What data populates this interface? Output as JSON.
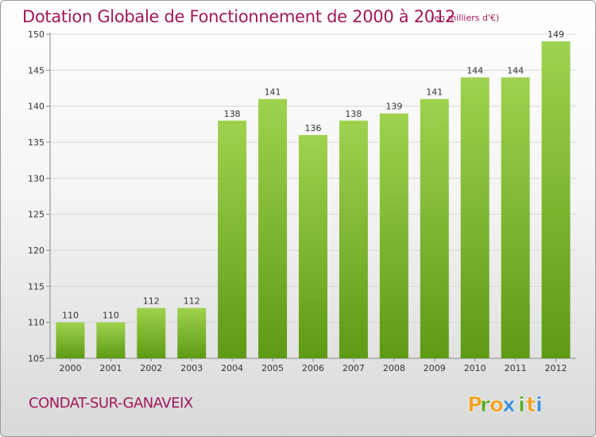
{
  "chart_data": {
    "type": "bar",
    "title": "Dotation Globale de Fonctionnement de 2000 à 2012",
    "subtitle": "(en milliers d'€)",
    "categories": [
      "2000",
      "2001",
      "2002",
      "2003",
      "2004",
      "2005",
      "2006",
      "2007",
      "2008",
      "2009",
      "2010",
      "2011",
      "2012"
    ],
    "values": [
      110,
      110,
      112,
      112,
      138,
      141,
      136,
      138,
      139,
      141,
      144,
      144,
      149
    ],
    "ylim": [
      105,
      150
    ],
    "yticks": [
      105,
      110,
      115,
      120,
      125,
      130,
      135,
      140,
      145,
      150
    ],
    "grid": true,
    "bar_color": "#7ab52a"
  },
  "commune": "CONDAT-SUR-GANAVEIX",
  "logo": {
    "letters": [
      "P",
      "r",
      "o",
      "x",
      "i",
      "t",
      "i"
    ],
    "colors": [
      "#f0a020",
      "#5aaa2a",
      "#f0a020",
      "#3a8fd8",
      "#5aaa2a",
      "#f0a020",
      "#3a8fd8"
    ]
  }
}
